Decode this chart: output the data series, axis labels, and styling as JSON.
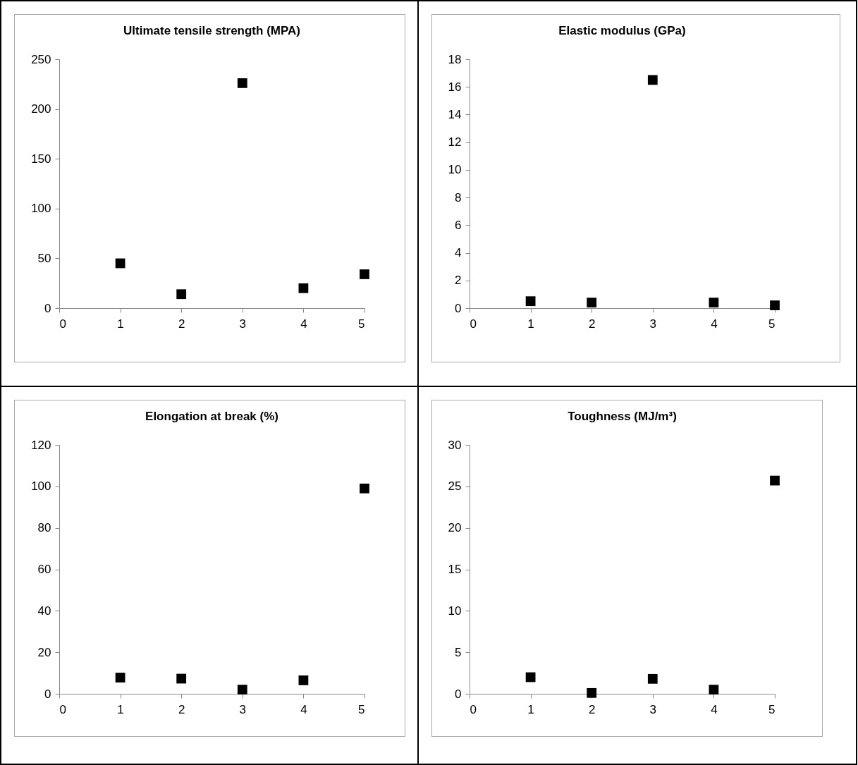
{
  "chart_data": [
    {
      "type": "scatter",
      "title": "Ultimate tensile strength (MPA)",
      "x": [
        1,
        2,
        3,
        4,
        5
      ],
      "values": [
        45,
        14,
        226,
        20,
        34
      ],
      "color": "#000000",
      "marker": "square",
      "xlim": [
        0,
        5
      ],
      "xticks": [
        0,
        1,
        2,
        3,
        4,
        5
      ],
      "ylim": [
        0,
        250
      ],
      "yticks": [
        0,
        50,
        100,
        150,
        200,
        250
      ]
    },
    {
      "type": "scatter",
      "title": "Elastic modulus (GPa)",
      "x": [
        1,
        2,
        3,
        4,
        5
      ],
      "values": [
        0.5,
        0.4,
        16.5,
        0.4,
        0.2
      ],
      "color": "#000000",
      "marker": "square",
      "xlim": [
        0,
        5
      ],
      "xticks": [
        0,
        1,
        2,
        3,
        4,
        5
      ],
      "ylim": [
        0,
        18
      ],
      "yticks": [
        0,
        2,
        4,
        6,
        8,
        10,
        12,
        14,
        16,
        18
      ]
    },
    {
      "type": "scatter",
      "title": "Elongation at break (%)",
      "x": [
        1,
        2,
        3,
        4,
        5
      ],
      "values": [
        7.8,
        7.3,
        2,
        6.5,
        99
      ],
      "color": "#000000",
      "marker": "square",
      "xlim": [
        0,
        5
      ],
      "xticks": [
        0,
        1,
        2,
        3,
        4,
        5
      ],
      "ylim": [
        0,
        120
      ],
      "yticks": [
        0,
        20,
        40,
        60,
        80,
        100,
        120
      ]
    },
    {
      "type": "scatter",
      "title": "Toughness (MJ/m³)",
      "x": [
        1,
        2,
        3,
        4,
        5
      ],
      "values": [
        2,
        0.1,
        1.8,
        0.5,
        25.7
      ],
      "color": "#000000",
      "marker": "square",
      "xlim": [
        0,
        5
      ],
      "xticks": [
        0,
        1,
        2,
        3,
        4,
        5
      ],
      "ylim": [
        0,
        30
      ],
      "yticks": [
        0,
        5,
        10,
        15,
        20,
        25,
        30
      ]
    }
  ]
}
